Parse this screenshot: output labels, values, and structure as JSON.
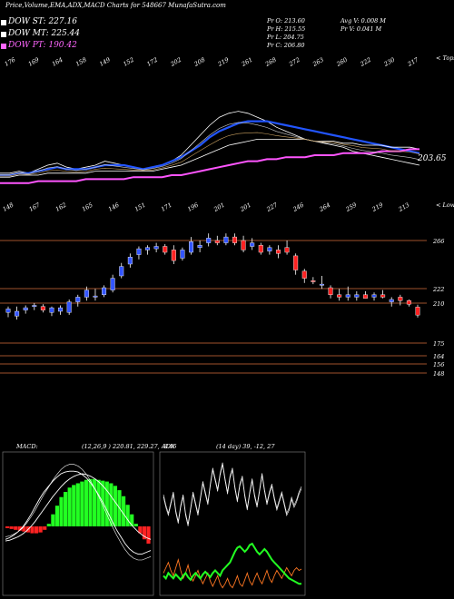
{
  "header": {
    "title": "Price,Volume,EMA,ADX,MACD Charts for 548667 MunafaSutra.com"
  },
  "ema_legend": [
    {
      "label": "DOW ST: 227.16",
      "color": "#ffffff"
    },
    {
      "label": "DOW MT: 225.44",
      "color": "#ffffff"
    },
    {
      "label": "DOW PT: 190.42",
      "color": "#ff66ff"
    }
  ],
  "stats": {
    "open": "Pr  O: 213.60",
    "high": "Pr  H: 215.55",
    "low": "Pr  L: 204.75",
    "close": "Pr  C: 206.80",
    "avg_volume": "Avg V: 0.008 M",
    "volume": "Pr  V: 0.041 M"
  },
  "colors": {
    "background": "#000000",
    "up": "#3355ff",
    "down": "#ff2222",
    "grid": "#a0522d",
    "ema_blue": "#2255ff",
    "ema_pink": "#ff55ff",
    "adx_green": "#22ff22",
    "adx_orange": "#ff7722",
    "macd_green": "#22ff22",
    "macd_red": "#ff2222"
  },
  "chart_data": [
    {
      "type": "line",
      "panel": "ema",
      "top_ticks": [
        "176",
        "169",
        "164",
        "158",
        "149",
        "152",
        "172",
        "202",
        "208",
        "219",
        "261",
        "268",
        "272",
        "263",
        "260",
        "222",
        "230",
        "217"
      ],
      "top_right_label": "< Tops",
      "last_value_label": "203.65",
      "series": [
        {
          "values": [
            186,
            186,
            187,
            186,
            188,
            190,
            191,
            189,
            188,
            189,
            190,
            192,
            191,
            190,
            189,
            188,
            189,
            190,
            192,
            195,
            200,
            205,
            210,
            214,
            216,
            217,
            216,
            214,
            212,
            209,
            207,
            205,
            203,
            202,
            201,
            200,
            199,
            197,
            196,
            195,
            194,
            193,
            192,
            191,
            190
          ]
        },
        {
          "values": [
            185,
            185,
            186,
            186,
            187,
            188,
            189,
            188,
            188,
            188,
            189,
            190,
            190,
            190,
            189,
            188,
            189,
            190,
            192,
            194,
            197,
            200,
            204,
            207,
            209,
            211,
            212,
            212,
            212,
            211,
            210,
            209,
            208,
            207,
            206,
            205,
            204,
            203,
            202,
            201,
            200,
            199,
            198,
            197,
            196
          ]
        },
        {
          "values": [
            184,
            184,
            185,
            185,
            185,
            186,
            186,
            186,
            186,
            186,
            187,
            187,
            187,
            187,
            187,
            187,
            187,
            188,
            189,
            190,
            192,
            194,
            196,
            198,
            200,
            201,
            202,
            203,
            203,
            203,
            203,
            203,
            203,
            202,
            202,
            202,
            201,
            201,
            200,
            200,
            200,
            199,
            199,
            199,
            198
          ]
        },
        {
          "values": [
            181,
            181,
            181,
            181,
            182,
            182,
            182,
            182,
            182,
            183,
            183,
            183,
            183,
            183,
            184,
            184,
            184,
            184,
            185,
            185,
            186,
            187,
            188,
            189,
            190,
            191,
            192,
            192,
            193,
            193,
            194,
            194,
            194,
            195,
            195,
            195,
            196,
            196,
            196,
            196,
            197,
            197,
            197,
            198,
            198
          ]
        }
      ]
    },
    {
      "type": "candlestick",
      "panel": "price",
      "bottom_ticks": [
        "148",
        "167",
        "162",
        "165",
        "146",
        "151",
        "171",
        "196",
        "201",
        "201",
        "227",
        "246",
        "264",
        "259",
        "219",
        "213"
      ],
      "right_label": "< Lows",
      "price_levels": [
        "266",
        "222",
        "210",
        "175",
        "164",
        "156",
        "148"
      ],
      "candles": [
        {
          "o": 209,
          "h": 214,
          "l": 205,
          "c": 212
        },
        {
          "o": 206,
          "h": 214,
          "l": 203,
          "c": 210
        },
        {
          "o": 211,
          "h": 215,
          "l": 208,
          "c": 213
        },
        {
          "o": 214,
          "h": 217,
          "l": 211,
          "c": 215
        },
        {
          "o": 214,
          "h": 216,
          "l": 209,
          "c": 211
        },
        {
          "o": 209,
          "h": 214,
          "l": 206,
          "c": 213
        },
        {
          "o": 210,
          "h": 215,
          "l": 207,
          "c": 213
        },
        {
          "o": 209,
          "h": 220,
          "l": 207,
          "c": 218
        },
        {
          "o": 218,
          "h": 224,
          "l": 214,
          "c": 222
        },
        {
          "o": 222,
          "h": 231,
          "l": 219,
          "c": 228
        },
        {
          "o": 222,
          "h": 229,
          "l": 219,
          "c": 223
        },
        {
          "o": 224,
          "h": 232,
          "l": 222,
          "c": 230
        },
        {
          "o": 228,
          "h": 241,
          "l": 226,
          "c": 238
        },
        {
          "o": 240,
          "h": 251,
          "l": 238,
          "c": 248
        },
        {
          "o": 250,
          "h": 259,
          "l": 247,
          "c": 256
        },
        {
          "o": 258,
          "h": 265,
          "l": 254,
          "c": 263
        },
        {
          "o": 262,
          "h": 266,
          "l": 258,
          "c": 264
        },
        {
          "o": 263,
          "h": 268,
          "l": 260,
          "c": 265
        },
        {
          "o": 265,
          "h": 267,
          "l": 258,
          "c": 260
        },
        {
          "o": 262,
          "h": 266,
          "l": 250,
          "c": 253
        },
        {
          "o": 255,
          "h": 264,
          "l": 253,
          "c": 262
        },
        {
          "o": 260,
          "h": 273,
          "l": 258,
          "c": 269
        },
        {
          "o": 264,
          "h": 270,
          "l": 260,
          "c": 266
        },
        {
          "o": 268,
          "h": 276,
          "l": 265,
          "c": 272
        },
        {
          "o": 270,
          "h": 274,
          "l": 266,
          "c": 268
        },
        {
          "o": 268,
          "h": 276,
          "l": 266,
          "c": 273
        },
        {
          "o": 273,
          "h": 276,
          "l": 266,
          "c": 268
        },
        {
          "o": 270,
          "h": 274,
          "l": 260,
          "c": 262
        },
        {
          "o": 265,
          "h": 272,
          "l": 262,
          "c": 268
        },
        {
          "o": 266,
          "h": 268,
          "l": 258,
          "c": 260
        },
        {
          "o": 261,
          "h": 266,
          "l": 258,
          "c": 264
        },
        {
          "o": 262,
          "h": 266,
          "l": 255,
          "c": 259
        },
        {
          "o": 264,
          "h": 270,
          "l": 258,
          "c": 260
        },
        {
          "o": 257,
          "h": 259,
          "l": 241,
          "c": 245
        },
        {
          "o": 244,
          "h": 246,
          "l": 234,
          "c": 238
        },
        {
          "o": 236,
          "h": 239,
          "l": 233,
          "c": 235
        },
        {
          "o": 232,
          "h": 240,
          "l": 229,
          "c": 233
        },
        {
          "o": 230,
          "h": 232,
          "l": 221,
          "c": 224
        },
        {
          "o": 224,
          "h": 229,
          "l": 219,
          "c": 222
        },
        {
          "o": 222,
          "h": 231,
          "l": 219,
          "c": 224
        },
        {
          "o": 222,
          "h": 227,
          "l": 219,
          "c": 224
        },
        {
          "o": 224,
          "h": 227,
          "l": 221,
          "c": 221
        },
        {
          "o": 222,
          "h": 226,
          "l": 219,
          "c": 224
        },
        {
          "o": 224,
          "h": 228,
          "l": 221,
          "c": 222
        },
        {
          "o": 218,
          "h": 222,
          "l": 214,
          "c": 220
        },
        {
          "o": 222,
          "h": 224,
          "l": 215,
          "c": 219
        },
        {
          "o": 219,
          "h": 220,
          "l": 214,
          "c": 216
        },
        {
          "o": 213.6,
          "h": 215.55,
          "l": 204.75,
          "c": 206.8
        }
      ]
    },
    {
      "type": "bar",
      "panel": "macd",
      "label": "MACD:",
      "values_text": "(12,26,9 ) 220.81,  229.27,  -8.46",
      "bars": [
        -2,
        -3,
        -4,
        -5,
        -6,
        -7,
        -8,
        -8,
        -7,
        -4,
        3,
        14,
        24,
        34,
        40,
        45,
        48,
        50,
        52,
        54,
        55,
        55,
        54,
        53,
        52,
        50,
        47,
        42,
        35,
        25,
        14,
        3,
        -8,
        -15,
        -20
      ],
      "macd_line": [
        -15,
        -13,
        -10,
        -6,
        -1,
        6,
        14,
        23,
        32,
        40,
        46,
        52,
        57,
        61,
        63,
        64,
        64,
        63,
        60,
        56,
        50,
        43,
        35,
        26,
        16,
        6,
        -4,
        -12,
        -20,
        -26,
        -30,
        -32,
        -32,
        -30,
        -28
      ],
      "signal_line": [
        -17,
        -16,
        -14,
        -12,
        -9,
        -5,
        0,
        6,
        13,
        20,
        27,
        34,
        40,
        46,
        51,
        55,
        58,
        60,
        61,
        60,
        58,
        55,
        51,
        46,
        40,
        33,
        26,
        19,
        12,
        5,
        -1,
        -6,
        -10,
        -13,
        -15
      ],
      "extra_line": [
        -12,
        -11,
        -9,
        -6,
        -2,
        4,
        11,
        19,
        28,
        37,
        45,
        53,
        60,
        66,
        70,
        72,
        72,
        70,
        66,
        60,
        52,
        43,
        33,
        22,
        11,
        0,
        -10,
        -19,
        -27,
        -33,
        -37,
        -39,
        -39,
        -37,
        -35
      ]
    },
    {
      "type": "line",
      "panel": "adx",
      "label": "ADX",
      "values_text": "(14  day)  39,  -12,  27",
      "plus_di": [
        72,
        64,
        58,
        66,
        74,
        60,
        52,
        64,
        72,
        58,
        50,
        62,
        74,
        66,
        58,
        70,
        82,
        74,
        66,
        80,
        92,
        84,
        76,
        88,
        96,
        84,
        74,
        86,
        92,
        78,
        68,
        80,
        86,
        72,
        62,
        74,
        84,
        72,
        64,
        76,
        88,
        76,
        66,
        74,
        80,
        70,
        62,
        68,
        74,
        66,
        58,
        62,
        70,
        64,
        68,
        74,
        78
      ],
      "minus_di": [
        14,
        18,
        22,
        16,
        12,
        18,
        24,
        16,
        10,
        14,
        20,
        12,
        8,
        12,
        16,
        10,
        6,
        10,
        14,
        8,
        4,
        8,
        12,
        6,
        3,
        6,
        10,
        5,
        3,
        7,
        12,
        6,
        4,
        9,
        14,
        8,
        5,
        10,
        14,
        9,
        6,
        11,
        16,
        10,
        7,
        12,
        16,
        13,
        10,
        14,
        18,
        15,
        12,
        16,
        18,
        16,
        17
      ],
      "adx": [
        12,
        10,
        14,
        12,
        10,
        13,
        11,
        9,
        12,
        14,
        11,
        9,
        12,
        14,
        12,
        10,
        13,
        15,
        13,
        11,
        14,
        16,
        14,
        12,
        16,
        18,
        20,
        22,
        26,
        30,
        33,
        34,
        32,
        30,
        32,
        35,
        36,
        33,
        30,
        28,
        30,
        32,
        30,
        27,
        24,
        22,
        20,
        18,
        16,
        14,
        12,
        10,
        9,
        8,
        7,
        6,
        6
      ]
    }
  ]
}
